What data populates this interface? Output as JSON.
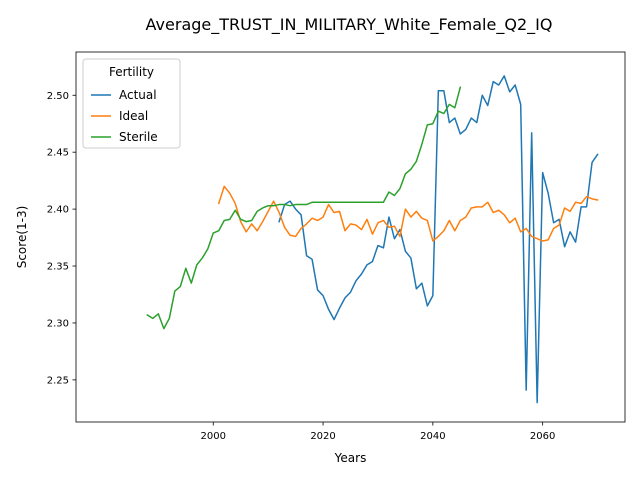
{
  "chart_data": {
    "type": "line",
    "title": "Average_TRUST_IN_MILITARY_White_Female_Q2_IQ",
    "xlabel": "Years",
    "ylabel": "Score(1-3)",
    "xlim": [
      1975,
      2075
    ],
    "ylim": [
      2.213,
      2.538
    ],
    "xticks": [
      2000,
      2020,
      2040,
      2060
    ],
    "yticks": [
      2.25,
      2.3,
      2.35,
      2.4,
      2.45,
      2.5
    ],
    "ytick_labels": [
      "2.25",
      "2.30",
      "2.35",
      "2.40",
      "2.45",
      "2.50"
    ],
    "grid": false,
    "legend": {
      "title": "Fertility",
      "position": "top-left"
    },
    "series": [
      {
        "name": "Actual",
        "color": "#1f77b4",
        "points": [
          [
            2012,
            2.389
          ],
          [
            2013,
            2.404
          ],
          [
            2014,
            2.407
          ],
          [
            2015,
            2.4
          ],
          [
            2016,
            2.395
          ],
          [
            2017,
            2.359
          ],
          [
            2018,
            2.356
          ],
          [
            2019,
            2.329
          ],
          [
            2020,
            2.324
          ],
          [
            2021,
            2.312
          ],
          [
            2022,
            2.303
          ],
          [
            2023,
            2.313
          ],
          [
            2024,
            2.322
          ],
          [
            2025,
            2.327
          ],
          [
            2026,
            2.337
          ],
          [
            2027,
            2.343
          ],
          [
            2028,
            2.351
          ],
          [
            2029,
            2.354
          ],
          [
            2030,
            2.368
          ],
          [
            2031,
            2.366
          ],
          [
            2032,
            2.393
          ],
          [
            2033,
            2.374
          ],
          [
            2034,
            2.382
          ],
          [
            2035,
            2.363
          ],
          [
            2036,
            2.357
          ],
          [
            2037,
            2.33
          ],
          [
            2038,
            2.335
          ],
          [
            2039,
            2.315
          ],
          [
            2040,
            2.324
          ],
          [
            2041,
            2.504
          ],
          [
            2042,
            2.504
          ],
          [
            2043,
            2.476
          ],
          [
            2044,
            2.48
          ],
          [
            2045,
            2.466
          ],
          [
            2046,
            2.47
          ],
          [
            2047,
            2.48
          ],
          [
            2048,
            2.476
          ],
          [
            2049,
            2.5
          ],
          [
            2050,
            2.491
          ],
          [
            2051,
            2.512
          ],
          [
            2052,
            2.509
          ],
          [
            2053,
            2.517
          ],
          [
            2054,
            2.503
          ],
          [
            2055,
            2.509
          ],
          [
            2056,
            2.492
          ],
          [
            2057,
            2.241
          ],
          [
            2058,
            2.467
          ],
          [
            2059,
            2.23
          ],
          [
            2060,
            2.432
          ],
          [
            2061,
            2.414
          ],
          [
            2062,
            2.388
          ],
          [
            2063,
            2.391
          ],
          [
            2064,
            2.367
          ],
          [
            2065,
            2.38
          ],
          [
            2066,
            2.371
          ],
          [
            2067,
            2.402
          ],
          [
            2068,
            2.402
          ],
          [
            2069,
            2.441
          ],
          [
            2070,
            2.448
          ]
        ]
      },
      {
        "name": "Ideal",
        "color": "#ff7f0e",
        "points": [
          [
            2001,
            2.405
          ],
          [
            2002,
            2.42
          ],
          [
            2003,
            2.414
          ],
          [
            2004,
            2.405
          ],
          [
            2005,
            2.389
          ],
          [
            2006,
            2.38
          ],
          [
            2007,
            2.387
          ],
          [
            2008,
            2.381
          ],
          [
            2009,
            2.389
          ],
          [
            2010,
            2.398
          ],
          [
            2011,
            2.407
          ],
          [
            2012,
            2.397
          ],
          [
            2013,
            2.384
          ],
          [
            2014,
            2.377
          ],
          [
            2015,
            2.376
          ],
          [
            2016,
            2.383
          ],
          [
            2017,
            2.387
          ],
          [
            2018,
            2.392
          ],
          [
            2019,
            2.39
          ],
          [
            2020,
            2.393
          ],
          [
            2021,
            2.404
          ],
          [
            2022,
            2.397
          ],
          [
            2023,
            2.398
          ],
          [
            2024,
            2.381
          ],
          [
            2025,
            2.387
          ],
          [
            2026,
            2.386
          ],
          [
            2027,
            2.382
          ],
          [
            2028,
            2.391
          ],
          [
            2029,
            2.378
          ],
          [
            2030,
            2.388
          ],
          [
            2031,
            2.39
          ],
          [
            2032,
            2.384
          ],
          [
            2033,
            2.385
          ],
          [
            2034,
            2.376
          ],
          [
            2035,
            2.4
          ],
          [
            2036,
            2.393
          ],
          [
            2037,
            2.398
          ],
          [
            2038,
            2.392
          ],
          [
            2039,
            2.39
          ],
          [
            2040,
            2.372
          ],
          [
            2041,
            2.376
          ],
          [
            2042,
            2.381
          ],
          [
            2043,
            2.39
          ],
          [
            2044,
            2.381
          ],
          [
            2045,
            2.39
          ],
          [
            2046,
            2.393
          ],
          [
            2047,
            2.401
          ],
          [
            2048,
            2.402
          ],
          [
            2049,
            2.402
          ],
          [
            2050,
            2.406
          ],
          [
            2051,
            2.397
          ],
          [
            2052,
            2.399
          ],
          [
            2053,
            2.395
          ],
          [
            2054,
            2.388
          ],
          [
            2055,
            2.392
          ],
          [
            2056,
            2.38
          ],
          [
            2057,
            2.383
          ],
          [
            2058,
            2.376
          ],
          [
            2059,
            2.374
          ],
          [
            2060,
            2.372
          ],
          [
            2061,
            2.373
          ],
          [
            2062,
            2.383
          ],
          [
            2063,
            2.386
          ],
          [
            2064,
            2.401
          ],
          [
            2065,
            2.398
          ],
          [
            2066,
            2.406
          ],
          [
            2067,
            2.405
          ],
          [
            2068,
            2.411
          ],
          [
            2069,
            2.409
          ],
          [
            2070,
            2.408
          ]
        ]
      },
      {
        "name": "Sterile",
        "color": "#2ca02c",
        "points": [
          [
            1988,
            2.307
          ],
          [
            1989,
            2.304
          ],
          [
            1990,
            2.308
          ],
          [
            1991,
            2.295
          ],
          [
            1992,
            2.304
          ],
          [
            1993,
            2.328
          ],
          [
            1994,
            2.332
          ],
          [
            1995,
            2.348
          ],
          [
            1996,
            2.335
          ],
          [
            1997,
            2.351
          ],
          [
            1998,
            2.357
          ],
          [
            1999,
            2.365
          ],
          [
            2000,
            2.379
          ],
          [
            2001,
            2.381
          ],
          [
            2002,
            2.39
          ],
          [
            2003,
            2.391
          ],
          [
            2004,
            2.399
          ],
          [
            2005,
            2.391
          ],
          [
            2006,
            2.389
          ],
          [
            2007,
            2.39
          ],
          [
            2008,
            2.398
          ],
          [
            2009,
            2.401
          ],
          [
            2010,
            2.403
          ],
          [
            2011,
            2.403
          ],
          [
            2012,
            2.404
          ],
          [
            2013,
            2.404
          ],
          [
            2014,
            2.403
          ],
          [
            2015,
            2.404
          ],
          [
            2016,
            2.404
          ],
          [
            2017,
            2.404
          ],
          [
            2018,
            2.406
          ],
          [
            2019,
            2.406
          ],
          [
            2020,
            2.406
          ],
          [
            2021,
            2.406
          ],
          [
            2022,
            2.406
          ],
          [
            2023,
            2.406
          ],
          [
            2024,
            2.406
          ],
          [
            2025,
            2.406
          ],
          [
            2026,
            2.406
          ],
          [
            2027,
            2.406
          ],
          [
            2028,
            2.406
          ],
          [
            2029,
            2.406
          ],
          [
            2030,
            2.406
          ],
          [
            2031,
            2.406
          ],
          [
            2032,
            2.415
          ],
          [
            2033,
            2.412
          ],
          [
            2034,
            2.418
          ],
          [
            2035,
            2.431
          ],
          [
            2036,
            2.435
          ],
          [
            2037,
            2.442
          ],
          [
            2038,
            2.457
          ],
          [
            2039,
            2.474
          ],
          [
            2040,
            2.475
          ],
          [
            2041,
            2.486
          ],
          [
            2042,
            2.484
          ],
          [
            2043,
            2.492
          ],
          [
            2044,
            2.489
          ],
          [
            2045,
            2.507
          ]
        ]
      }
    ]
  }
}
